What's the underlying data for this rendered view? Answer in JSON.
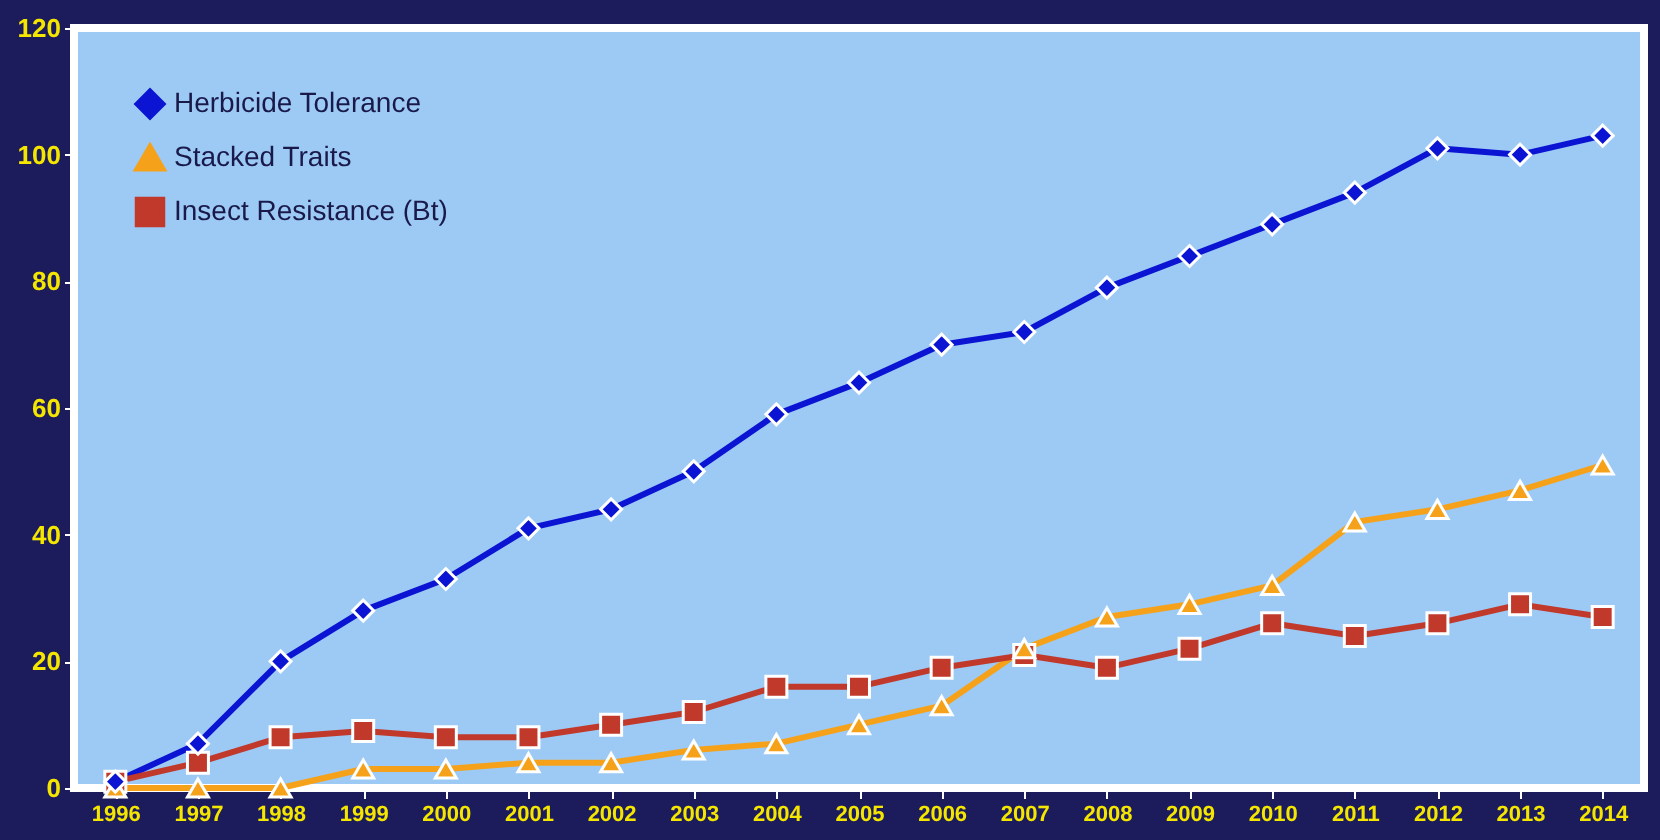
{
  "chart_data": {
    "type": "line",
    "categories": [
      "1996",
      "1997",
      "1998",
      "1999",
      "2000",
      "2001",
      "2002",
      "2003",
      "2004",
      "2005",
      "2006",
      "2007",
      "2008",
      "2009",
      "2010",
      "2011",
      "2012",
      "2013",
      "2014"
    ],
    "series": [
      {
        "name": "Herbicide Tolerance",
        "color": "#0a14d2",
        "marker": "diamond",
        "values": [
          1,
          7,
          20,
          28,
          33,
          41,
          44,
          50,
          59,
          64,
          70,
          72,
          79,
          84,
          89,
          94,
          101,
          100,
          103
        ]
      },
      {
        "name": "Stacked Traits",
        "color": "#f5a21a",
        "marker": "triangle",
        "values": [
          0,
          0,
          0,
          3,
          3,
          4,
          4,
          6,
          7,
          10,
          13,
          22,
          27,
          29,
          32,
          42,
          44,
          47,
          51
        ]
      },
      {
        "name": "Insect Resistance (Bt)",
        "color": "#c0392b",
        "marker": "square",
        "values": [
          1,
          4,
          8,
          9,
          8,
          8,
          10,
          12,
          16,
          16,
          19,
          21,
          19,
          22,
          26,
          24,
          26,
          29,
          27
        ]
      }
    ],
    "ylim": [
      0,
      120
    ],
    "yticks": [
      0,
      20,
      40,
      60,
      80,
      100,
      120
    ],
    "grid": false,
    "legend": "top left",
    "line_style": "solid"
  }
}
